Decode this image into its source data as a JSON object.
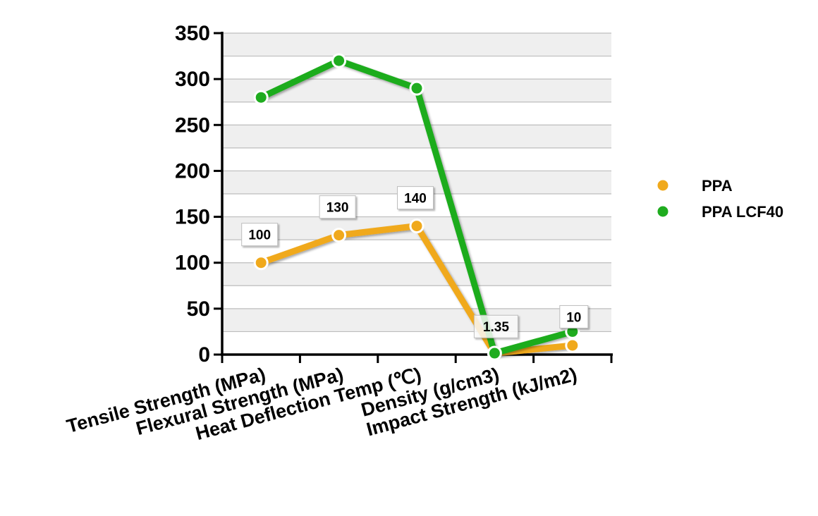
{
  "chart_data": {
    "type": "line",
    "title": "",
    "xlabel": "",
    "ylabel": "",
    "categories": [
      "Tensile Strength (MPa)",
      "Flexural Strength (MPa)",
      "Heat Deflection Temp (℃)",
      "Density (g/cm3)",
      "Impact Strength (kJ/m2)"
    ],
    "ylim": [
      0,
      350
    ],
    "yticks": [
      "0",
      "50",
      "100",
      "150",
      "200",
      "250",
      "300",
      "350"
    ],
    "grid": true,
    "legend_position": "right",
    "series": [
      {
        "name": "PPA",
        "color": "#f0a91c",
        "values": [
          100,
          130,
          140,
          1.35,
          10
        ],
        "data_labels": [
          "100",
          "130",
          "140",
          "1.35",
          "10"
        ]
      },
      {
        "name": "PPA LCF40",
        "color": "#1fac1f",
        "values": [
          280,
          320,
          290,
          1.5,
          25
        ],
        "data_labels": []
      }
    ]
  }
}
